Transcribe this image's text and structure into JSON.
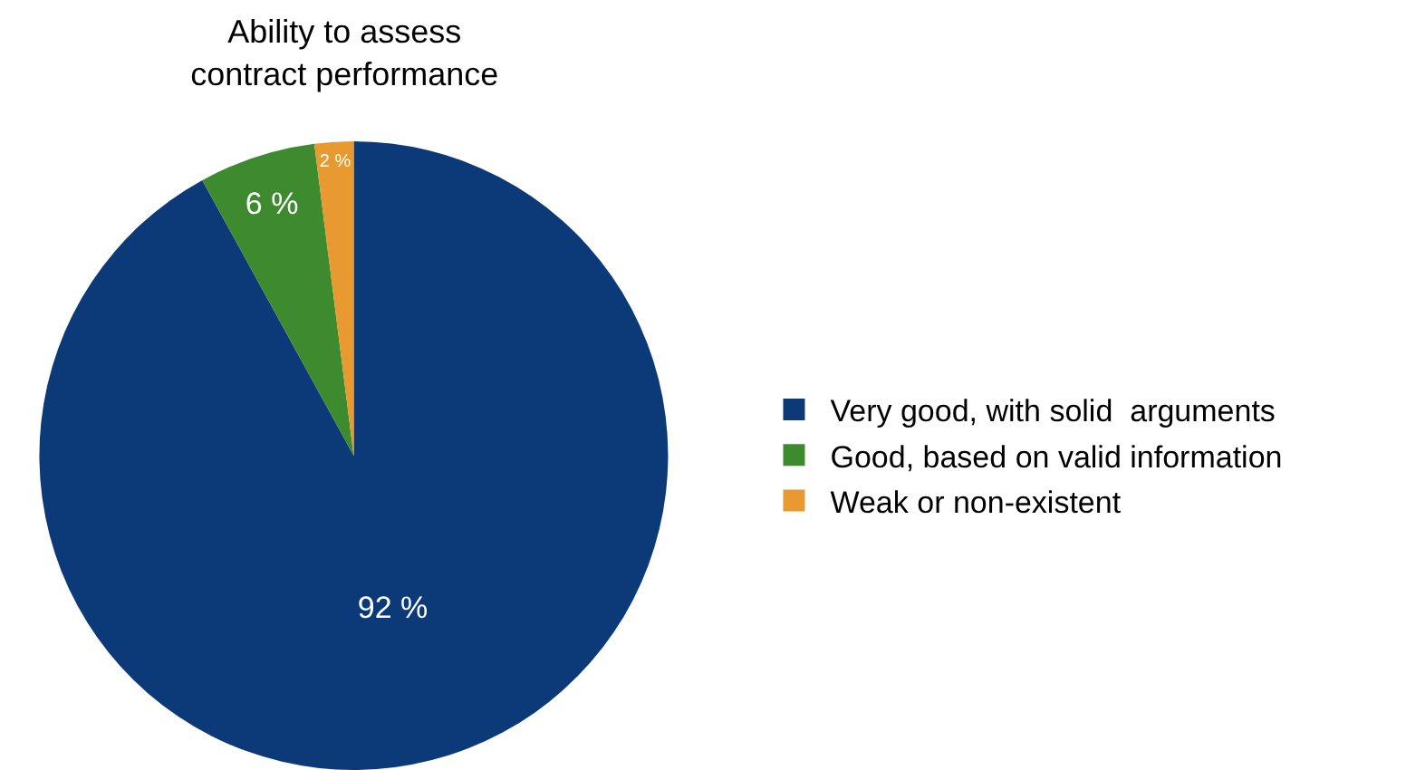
{
  "chart_data": {
    "type": "pie",
    "title": "Ability to assess\ncontract performance",
    "categories": [
      "Very good, with solid  arguments",
      "Good, based on valid information",
      "Weak or non-existent"
    ],
    "values": [
      92,
      6,
      2
    ],
    "value_labels": [
      "92 %",
      "6 %",
      "2 %"
    ],
    "colors": [
      "#0c3a78",
      "#3e8a2e",
      "#e89a30"
    ],
    "legend": "right"
  }
}
